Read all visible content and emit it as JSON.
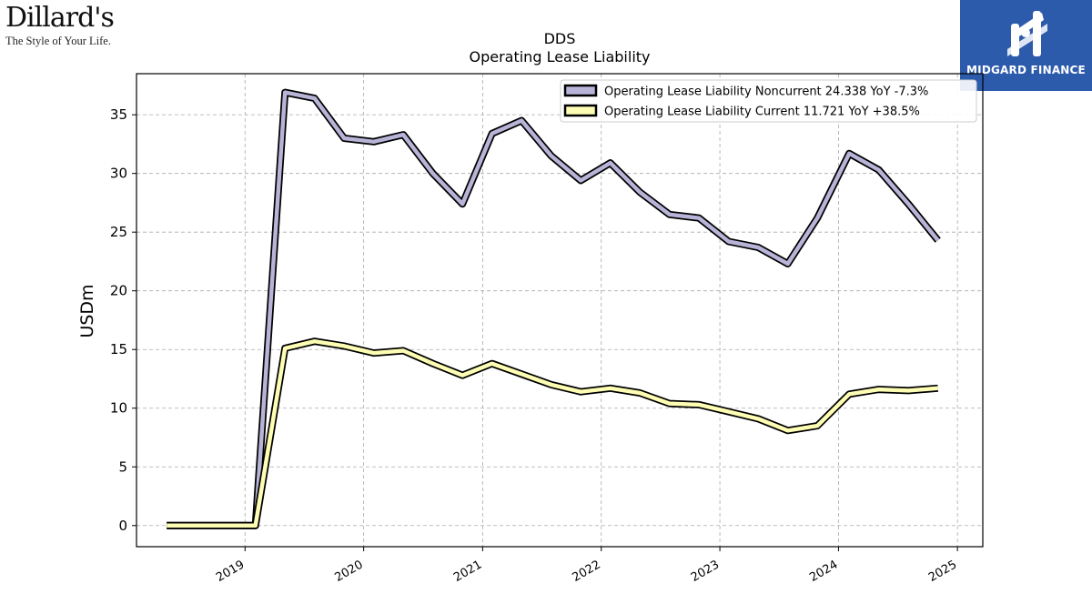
{
  "branding": {
    "left_logo_word": "Dillard's",
    "left_logo_tagline": "The Style of Your Life.",
    "right_logo_text": "MIDGARD FINANCE"
  },
  "colors": {
    "noncurrent": "#b7b4d8",
    "current": "#fdfdb4",
    "outline": "#000000",
    "grid": "#aaaaaa",
    "brand_blue": "#2d5bab"
  },
  "chart_data": {
    "type": "line",
    "title": "DDS",
    "subtitle": "Operating Lease Liability",
    "xlabel": "",
    "ylabel": "USDm",
    "ylim": [
      -1.8,
      38.5
    ],
    "xlim": [
      "2018-02-01",
      "2025-03-20"
    ],
    "y_ticks": [
      0,
      5,
      10,
      15,
      20,
      25,
      30,
      35
    ],
    "x_ticks": [
      "2019",
      "2020",
      "2021",
      "2022",
      "2023",
      "2024",
      "2025"
    ],
    "grid": true,
    "legend_position": "top-right",
    "x": [
      "2018-05-05",
      "2018-08-04",
      "2018-11-03",
      "2019-02-02",
      "2019-05-04",
      "2019-08-03",
      "2019-11-02",
      "2020-02-01",
      "2020-05-02",
      "2020-08-01",
      "2020-10-31",
      "2021-01-30",
      "2021-05-01",
      "2021-07-31",
      "2021-10-30",
      "2022-01-29",
      "2022-04-30",
      "2022-07-30",
      "2022-10-29",
      "2023-01-28",
      "2023-04-29",
      "2023-07-29",
      "2023-10-28",
      "2024-02-03",
      "2024-05-04",
      "2024-08-03",
      "2024-11-02"
    ],
    "series": [
      {
        "name": "Operating Lease Liability Noncurrent",
        "legend_label": "Operating Lease Liability Noncurrent  24.338 YoY -7.3%",
        "values": [
          0,
          0,
          0,
          0,
          36.9,
          36.4,
          33.0,
          32.7,
          33.3,
          30.0,
          27.4,
          33.4,
          34.5,
          31.5,
          29.4,
          30.9,
          28.4,
          26.5,
          26.2,
          24.2,
          23.7,
          22.3,
          26.2,
          31.7,
          30.3,
          27.4,
          24.3
        ]
      },
      {
        "name": "Operating Lease Liability Current",
        "legend_label": "Operating Lease Liability Current  11.721 YoY +38.5%",
        "values": [
          0,
          0,
          0,
          0,
          15.1,
          15.7,
          15.3,
          14.7,
          14.9,
          13.8,
          12.8,
          13.8,
          12.9,
          12.0,
          11.4,
          11.7,
          11.3,
          10.4,
          10.3,
          9.7,
          9.1,
          8.1,
          8.5,
          11.2,
          11.6,
          11.5,
          11.7
        ]
      }
    ]
  }
}
